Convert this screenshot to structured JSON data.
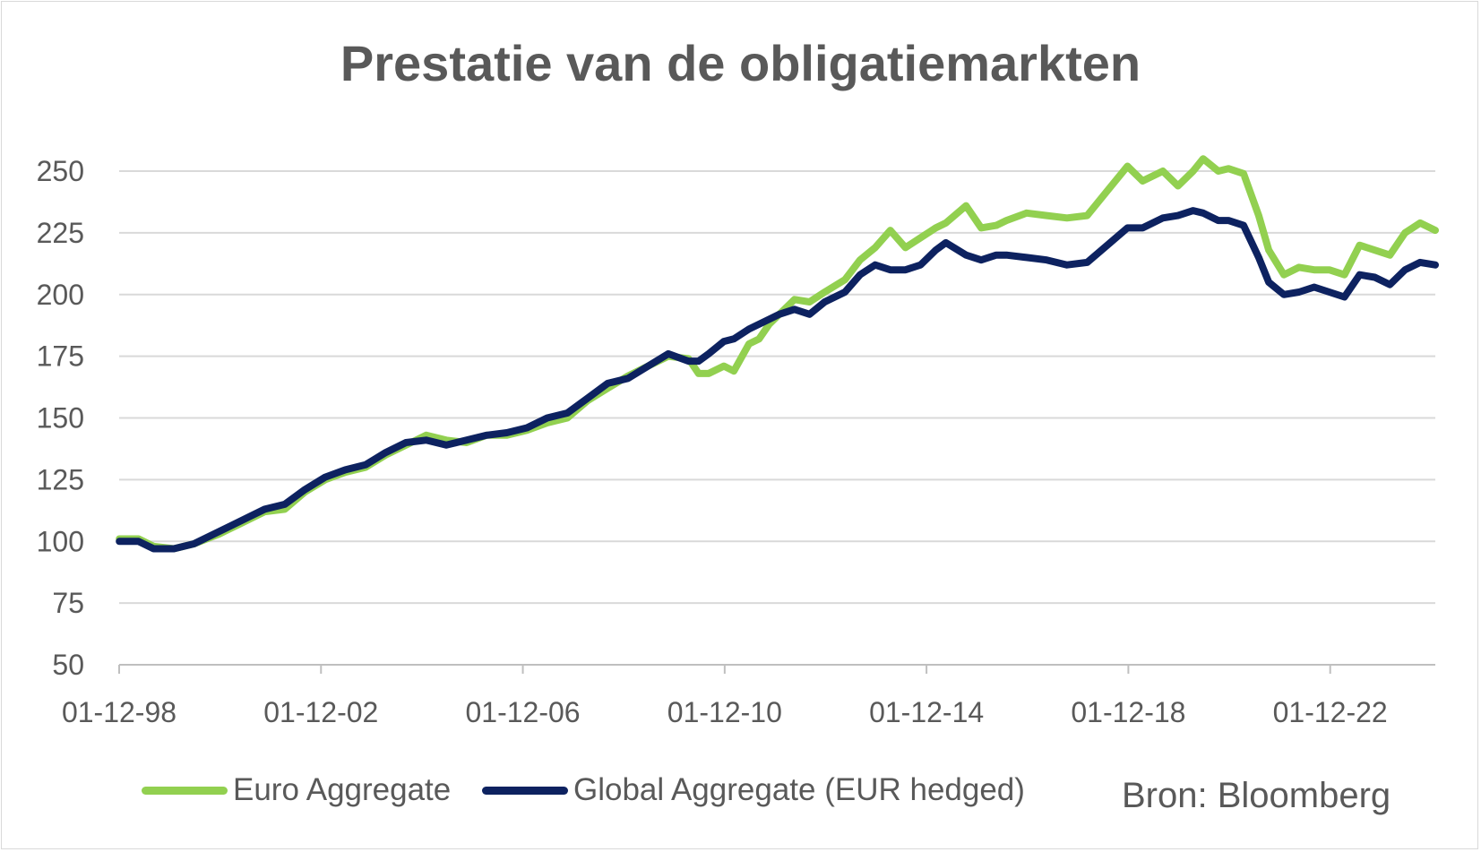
{
  "chart_data": {
    "type": "line",
    "title": "Prestatie van de obligatiemarkten",
    "xlabel": "",
    "ylabel": "",
    "ylim": [
      50,
      250
    ],
    "yticks": [
      50,
      75,
      100,
      125,
      150,
      175,
      200,
      225,
      250
    ],
    "xlim": [
      1998.917,
      2025.0
    ],
    "xtick_values": [
      1998.917,
      2002.917,
      2006.917,
      2010.917,
      2014.917,
      2018.917,
      2022.917
    ],
    "xtick_labels": [
      "01-12-98",
      "01-12-02",
      "01-12-06",
      "01-12-10",
      "01-12-14",
      "01-12-18",
      "01-12-22"
    ],
    "grid": true,
    "legend_position": "bottom",
    "source_note": "Bron: Bloomberg",
    "series": [
      {
        "name": "Euro Aggregate",
        "color": "#92d050",
        "x": [
          1998.92,
          1999.3,
          1999.6,
          2000.0,
          2000.4,
          2000.9,
          2001.3,
          2001.8,
          2002.2,
          2002.6,
          2003.0,
          2003.4,
          2003.8,
          2004.2,
          2004.6,
          2005.0,
          2005.4,
          2005.8,
          2006.2,
          2006.6,
          2007.0,
          2007.4,
          2007.8,
          2008.2,
          2008.6,
          2009.0,
          2009.4,
          2009.8,
          2010.2,
          2010.4,
          2010.6,
          2010.9,
          2011.1,
          2011.4,
          2011.6,
          2011.8,
          2012.0,
          2012.3,
          2012.6,
          2012.9,
          2013.3,
          2013.6,
          2013.9,
          2014.2,
          2014.5,
          2014.8,
          2015.1,
          2015.3,
          2015.7,
          2016.0,
          2016.3,
          2016.5,
          2016.9,
          2017.3,
          2017.7,
          2018.1,
          2018.5,
          2018.9,
          2019.2,
          2019.6,
          2019.9,
          2020.2,
          2020.4,
          2020.7,
          2020.9,
          2021.2,
          2021.5,
          2021.7,
          2022.0,
          2022.3,
          2022.6,
          2022.9,
          2023.2,
          2023.5,
          2023.8,
          2024.1,
          2024.4,
          2024.7,
          2025.0
        ],
        "y": [
          101,
          101,
          98,
          97,
          99,
          103,
          107,
          112,
          113,
          120,
          125,
          128,
          130,
          135,
          139,
          143,
          141,
          140,
          143,
          143,
          145,
          148,
          150,
          157,
          162,
          167,
          171,
          175,
          174,
          168,
          168,
          171,
          169,
          180,
          182,
          188,
          192,
          198,
          197,
          201,
          206,
          214,
          219,
          226,
          219,
          223,
          227,
          229,
          236,
          227,
          228,
          230,
          233,
          232,
          231,
          232,
          242,
          252,
          246,
          250,
          244,
          250,
          255,
          250,
          251,
          249,
          232,
          218,
          208,
          211,
          210,
          210,
          208,
          220,
          218,
          216,
          225,
          229,
          226
        ]
      },
      {
        "name": "Global Aggregate (EUR hedged)",
        "color": "#0d2260",
        "x": [
          1998.92,
          1999.3,
          1999.6,
          2000.0,
          2000.4,
          2000.9,
          2001.3,
          2001.8,
          2002.2,
          2002.6,
          2003.0,
          2003.4,
          2003.8,
          2004.2,
          2004.6,
          2005.0,
          2005.4,
          2005.8,
          2006.2,
          2006.6,
          2007.0,
          2007.4,
          2007.8,
          2008.2,
          2008.6,
          2009.0,
          2009.4,
          2009.8,
          2010.2,
          2010.4,
          2010.6,
          2010.9,
          2011.1,
          2011.4,
          2011.6,
          2011.8,
          2012.0,
          2012.3,
          2012.6,
          2012.9,
          2013.3,
          2013.6,
          2013.9,
          2014.2,
          2014.5,
          2014.8,
          2015.1,
          2015.3,
          2015.7,
          2016.0,
          2016.3,
          2016.5,
          2016.9,
          2017.3,
          2017.7,
          2018.1,
          2018.5,
          2018.9,
          2019.2,
          2019.6,
          2019.9,
          2020.2,
          2020.4,
          2020.7,
          2020.9,
          2021.2,
          2021.5,
          2021.7,
          2022.0,
          2022.3,
          2022.6,
          2022.9,
          2023.2,
          2023.5,
          2023.8,
          2024.1,
          2024.4,
          2024.7,
          2025.0
        ],
        "y": [
          100,
          100,
          97,
          97,
          99,
          104,
          108,
          113,
          115,
          121,
          126,
          129,
          131,
          136,
          140,
          141,
          139,
          141,
          143,
          144,
          146,
          150,
          152,
          158,
          164,
          166,
          171,
          176,
          173,
          173,
          176,
          181,
          182,
          186,
          188,
          190,
          192,
          194,
          192,
          197,
          201,
          208,
          212,
          210,
          210,
          212,
          218,
          221,
          216,
          214,
          216,
          216,
          215,
          214,
          212,
          213,
          220,
          227,
          227,
          231,
          232,
          234,
          233,
          230,
          230,
          228,
          215,
          205,
          200,
          201,
          203,
          201,
          199,
          208,
          207,
          204,
          210,
          213,
          212
        ]
      }
    ]
  }
}
